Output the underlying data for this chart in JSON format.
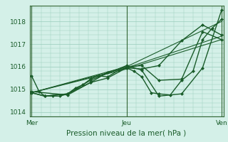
{
  "bg_color": "#d4f0e8",
  "grid_color": "#99ccbb",
  "line_color": "#1a5c2a",
  "xlabel": "Pression niveau de la mer( hPa )",
  "xtick_labels": [
    "Mer",
    "Jeu",
    "Ven"
  ],
  "xtick_positions": [
    0.0,
    0.5,
    1.0
  ],
  "ylim": [
    1013.8,
    1018.7
  ],
  "yticks": [
    1014,
    1015,
    1016,
    1017,
    1018
  ],
  "lines": [
    {
      "x": [
        0.0,
        0.04,
        0.07,
        0.11,
        0.15,
        0.19,
        0.23,
        0.27,
        0.31,
        0.35,
        0.4,
        0.46,
        0.5,
        0.54,
        0.58,
        0.63,
        0.67,
        0.73,
        0.79,
        0.85,
        0.9,
        0.95,
        1.0
      ],
      "y": [
        1015.6,
        1014.9,
        1014.7,
        1014.7,
        1014.7,
        1014.8,
        1015.05,
        1015.2,
        1015.45,
        1015.6,
        1015.55,
        1015.85,
        1015.95,
        1015.8,
        1015.55,
        1014.85,
        1014.8,
        1014.75,
        1015.4,
        1015.8,
        1017.2,
        1017.7,
        1018.1
      ],
      "style": "-",
      "marker": "D",
      "markersize": 2.0,
      "linewidth": 1.0
    },
    {
      "x": [
        0.0,
        0.07,
        0.19,
        0.31,
        0.4,
        0.5,
        0.58,
        0.67,
        0.79,
        0.9,
        1.0
      ],
      "y": [
        1014.85,
        1014.7,
        1014.8,
        1015.3,
        1015.5,
        1015.95,
        1015.9,
        1016.05,
        1017.15,
        1017.85,
        1017.4
      ],
      "style": "-",
      "marker": "D",
      "markersize": 2.0,
      "linewidth": 1.0
    },
    {
      "x": [
        0.0,
        0.07,
        0.19,
        0.31,
        0.5,
        0.58,
        0.67,
        0.79,
        0.9,
        1.0
      ],
      "y": [
        1014.85,
        1014.7,
        1014.8,
        1015.4,
        1016.05,
        1015.85,
        1014.7,
        1014.8,
        1015.95,
        1018.5
      ],
      "style": "-",
      "marker": "D",
      "markersize": 2.0,
      "linewidth": 1.0
    },
    {
      "x": [
        0.0,
        0.19,
        0.31,
        0.4,
        0.5,
        0.58,
        0.67,
        0.79,
        0.9,
        1.0
      ],
      "y": [
        1014.9,
        1014.75,
        1015.3,
        1015.75,
        1016.0,
        1016.05,
        1015.4,
        1015.45,
        1017.55,
        1017.2
      ],
      "style": "-",
      "marker": "D",
      "markersize": 2.0,
      "linewidth": 1.0
    },
    {
      "x": [
        0.0,
        0.5,
        1.0
      ],
      "y": [
        1014.85,
        1016.0,
        1018.0
      ],
      "style": "-",
      "marker": null,
      "markersize": 0,
      "linewidth": 0.8
    },
    {
      "x": [
        0.0,
        0.5,
        1.0
      ],
      "y": [
        1014.85,
        1015.95,
        1017.35
      ],
      "style": "-",
      "marker": null,
      "markersize": 0,
      "linewidth": 0.8
    },
    {
      "x": [
        0.0,
        0.5,
        1.0
      ],
      "y": [
        1014.85,
        1015.9,
        1017.2
      ],
      "style": "-",
      "marker": null,
      "markersize": 0,
      "linewidth": 0.8
    }
  ],
  "vline_color": "#336633",
  "font_color": "#1a5c2a",
  "fontsize_ticks": 6.5,
  "fontsize_xlabel": 7.5
}
